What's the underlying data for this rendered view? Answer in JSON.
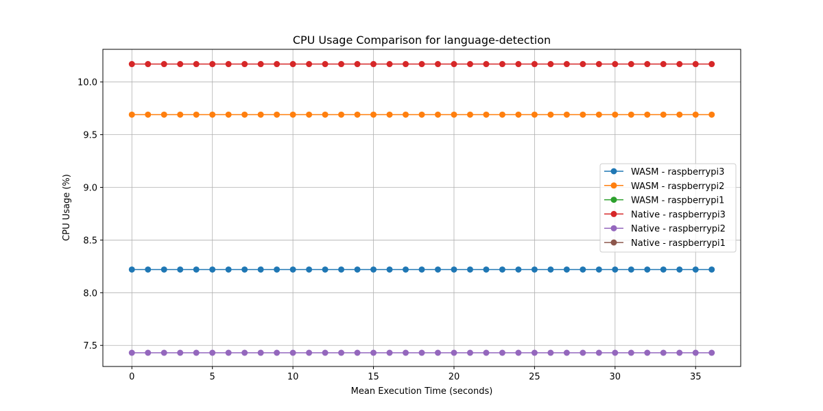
{
  "chart_data": {
    "type": "line",
    "title": "CPU Usage Comparison for language-detection",
    "xlabel": "Mean Execution Time (seconds)",
    "ylabel": "CPU Usage (%)",
    "xlim": [
      -1.8,
      37.8
    ],
    "ylim": [
      7.3,
      10.31
    ],
    "xticks": [
      0,
      5,
      10,
      15,
      20,
      25,
      30,
      35
    ],
    "xtick_labels": [
      "0",
      "5",
      "10",
      "15",
      "20",
      "25",
      "30",
      "35"
    ],
    "yticks": [
      7.5,
      8.0,
      8.5,
      9.0,
      9.5,
      10.0
    ],
    "ytick_labels": [
      "7.5",
      "8.0",
      "8.5",
      "9.0",
      "9.5",
      "10.0"
    ],
    "grid": true,
    "legend_position": "center-right",
    "x": [
      0,
      1,
      2,
      3,
      4,
      5,
      6,
      7,
      8,
      9,
      10,
      11,
      12,
      13,
      14,
      15,
      16,
      17,
      18,
      19,
      20,
      21,
      22,
      23,
      24,
      25,
      26,
      27,
      28,
      29,
      30,
      31,
      32,
      33,
      34,
      35,
      36
    ],
    "series": [
      {
        "name": "WASM - raspberrypi3",
        "color": "#1f77b4",
        "value": 8.22
      },
      {
        "name": "WASM - raspberrypi2",
        "color": "#ff7f0e",
        "value": 9.69
      },
      {
        "name": "WASM - raspberrypi1",
        "color": "#2ca02c",
        "value": null
      },
      {
        "name": "Native - raspberrypi3",
        "color": "#d62728",
        "value": 10.17
      },
      {
        "name": "Native - raspberrypi2",
        "color": "#9467bd",
        "value": 7.43
      },
      {
        "name": "Native - raspberrypi1",
        "color": "#8c564b",
        "value": null
      }
    ]
  }
}
